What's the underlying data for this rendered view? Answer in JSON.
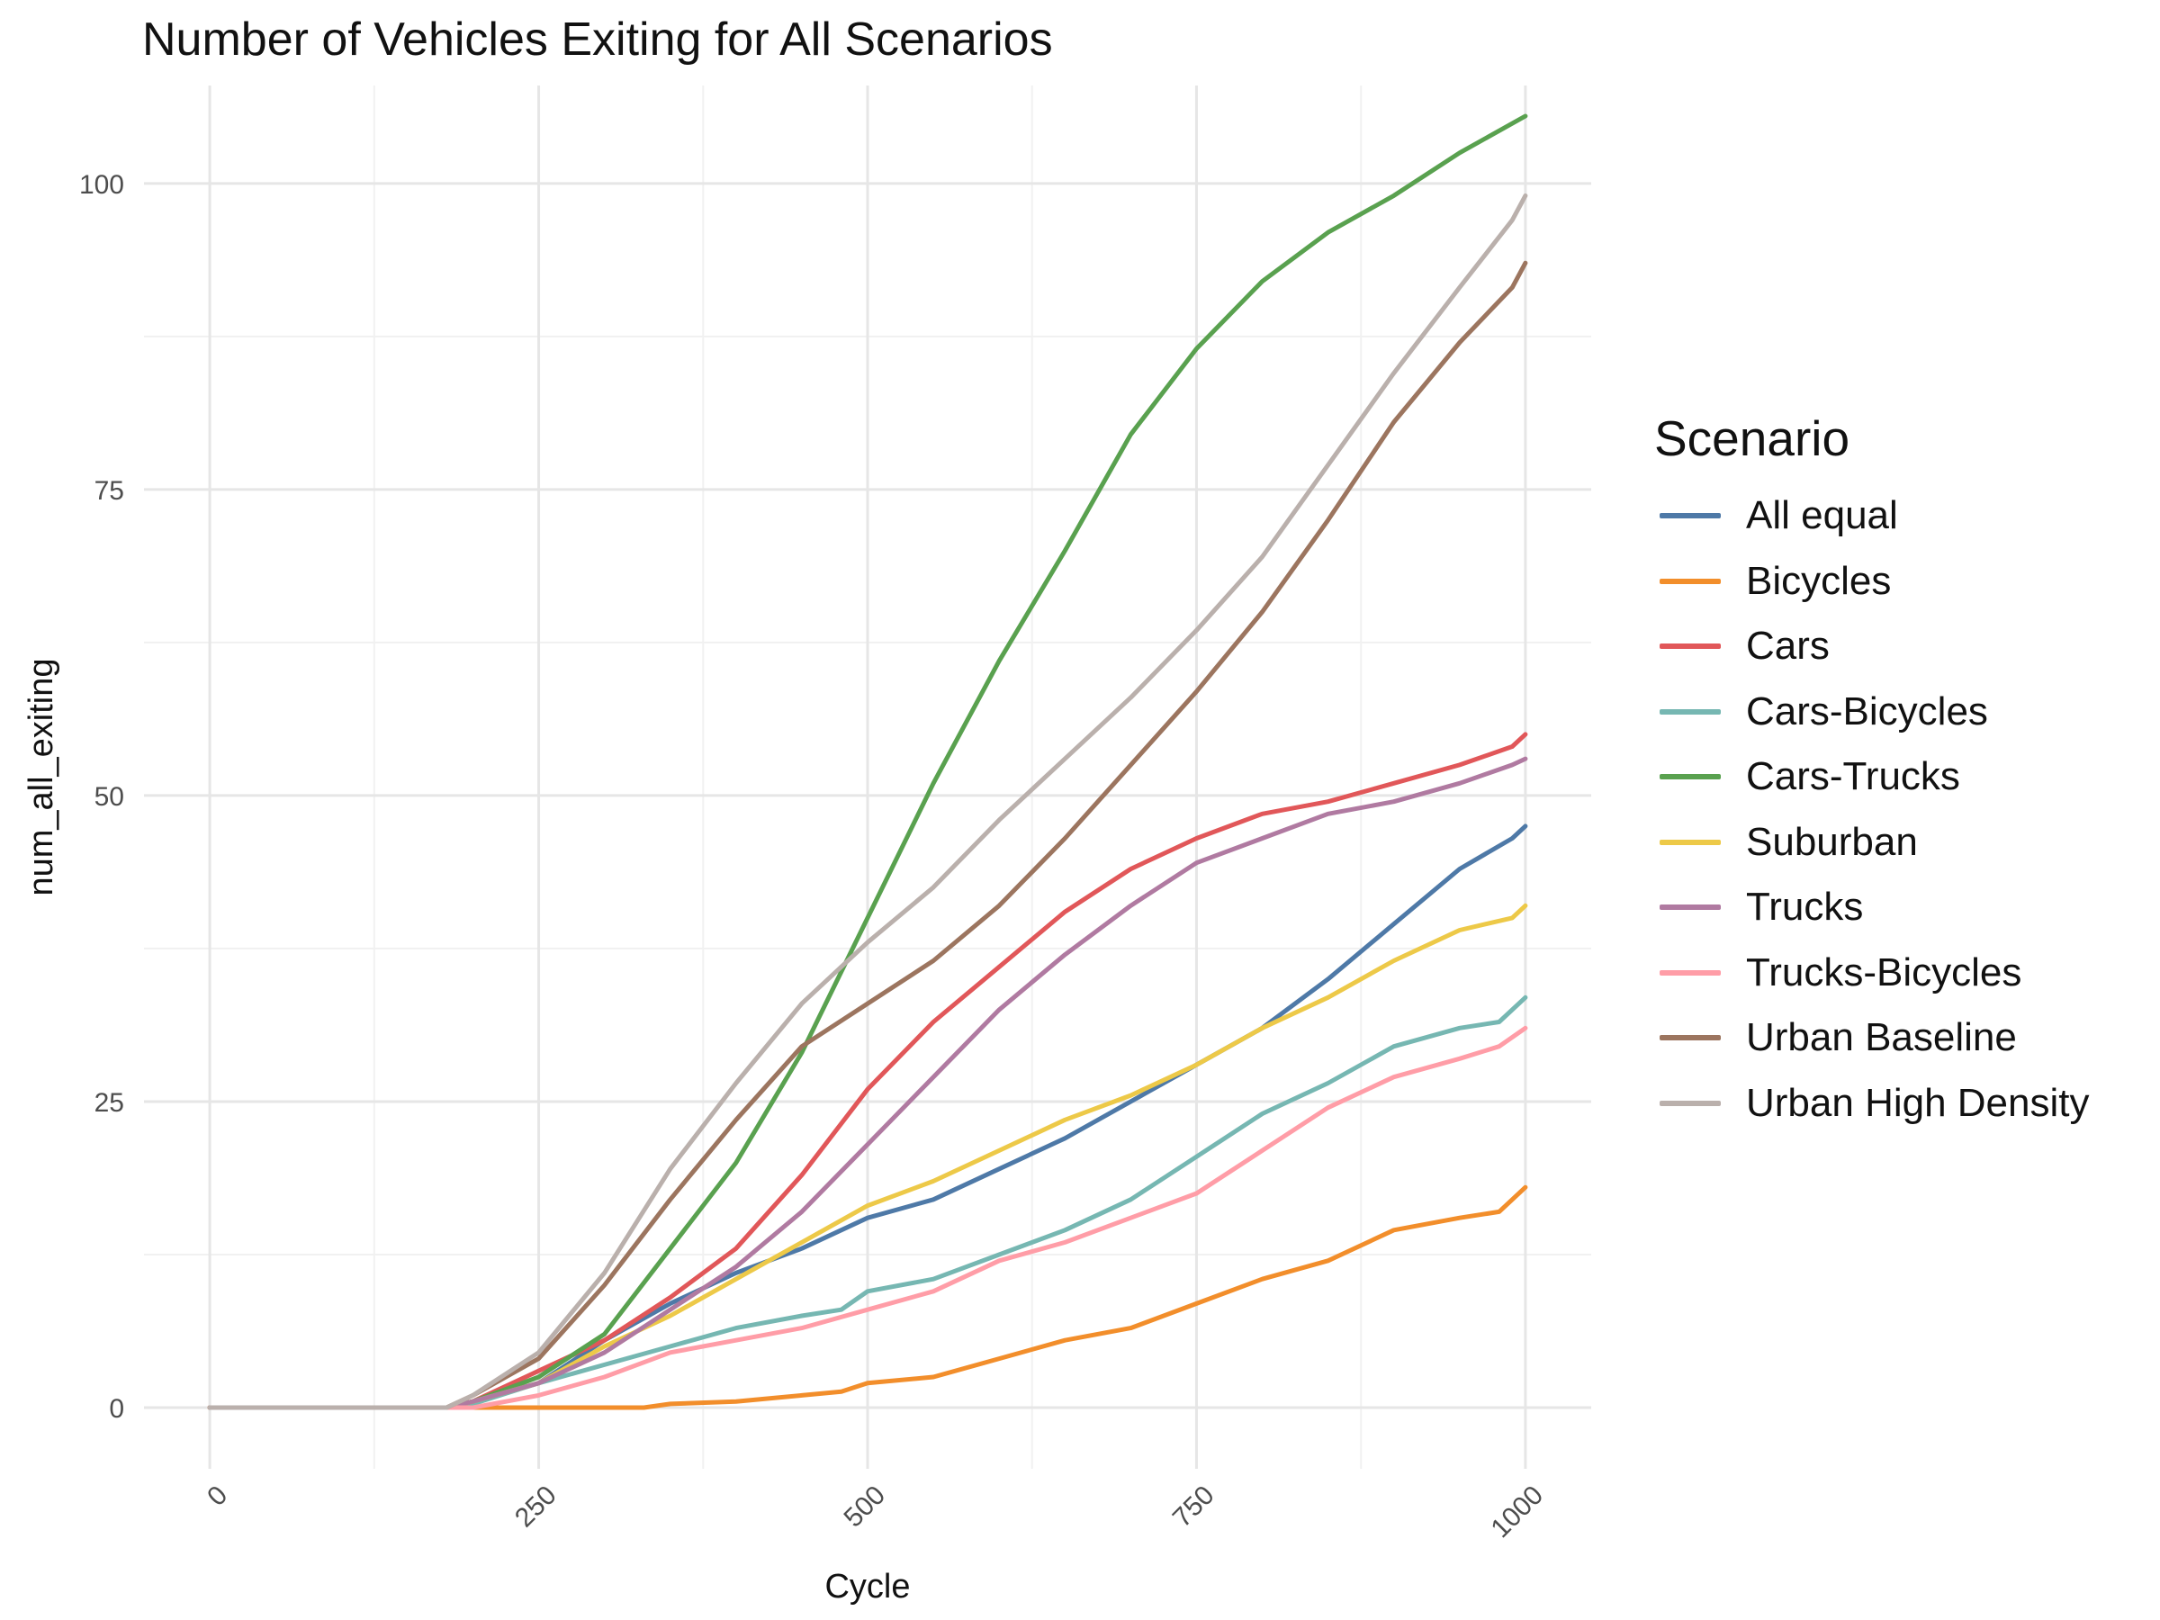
{
  "chart_data": {
    "type": "line",
    "title": "Number of Vehicles Exiting for All Scenarios",
    "xlabel": "Cycle",
    "ylabel": "num_all_exiting",
    "xlim": [
      -50,
      1050
    ],
    "ylim": [
      -5,
      108
    ],
    "x_ticks": [
      0,
      250,
      500,
      750,
      1000
    ],
    "x_tick_labels": [
      "0",
      "250",
      "500",
      "750",
      "1000"
    ],
    "y_ticks": [
      0,
      25,
      50,
      75,
      100
    ],
    "y_tick_labels": [
      "0",
      "25",
      "50",
      "75",
      "100"
    ],
    "grid": true,
    "legend": {
      "title": "Scenario",
      "placement": "right"
    },
    "series": [
      {
        "name": "All equal",
        "color": "#4e79a7",
        "x": [
          0,
          180,
          200,
          250,
          300,
          350,
          400,
          450,
          500,
          550,
          600,
          650,
          700,
          750,
          800,
          850,
          900,
          950,
          990,
          1000
        ],
        "y": [
          0,
          0,
          0.5,
          2,
          5.5,
          8.5,
          11,
          13,
          15.5,
          17,
          19.5,
          22,
          25,
          28,
          31,
          35,
          39.5,
          44,
          46.5,
          47.5
        ]
      },
      {
        "name": "Bicycles",
        "color": "#f28e2b",
        "x": [
          0,
          330,
          350,
          400,
          450,
          480,
          500,
          550,
          600,
          650,
          700,
          750,
          800,
          850,
          900,
          950,
          980,
          990,
          1000
        ],
        "y": [
          0,
          0,
          0.3,
          0.5,
          1,
          1.3,
          2,
          2.5,
          4,
          5.5,
          6.5,
          8.5,
          10.5,
          12,
          14.5,
          15.5,
          16,
          17,
          18
        ]
      },
      {
        "name": "Cars",
        "color": "#e15759",
        "x": [
          0,
          180,
          200,
          250,
          300,
          350,
          400,
          450,
          500,
          550,
          600,
          650,
          700,
          750,
          800,
          850,
          900,
          950,
          990,
          1000
        ],
        "y": [
          0,
          0,
          0.5,
          3,
          5.5,
          9,
          13,
          19,
          26,
          31.5,
          36,
          40.5,
          44,
          46.5,
          48.5,
          49.5,
          51,
          52.5,
          54,
          55
        ]
      },
      {
        "name": "Cars-Bicycles",
        "color": "#76b7b2",
        "x": [
          0,
          190,
          200,
          250,
          300,
          350,
          400,
          450,
          480,
          500,
          550,
          600,
          650,
          700,
          750,
          800,
          850,
          900,
          950,
          980,
          1000
        ],
        "y": [
          0,
          0,
          0.3,
          2,
          3.5,
          5,
          6.5,
          7.5,
          8,
          9.5,
          10.5,
          12.5,
          14.5,
          17,
          20.5,
          24,
          26.5,
          29.5,
          31,
          31.5,
          33.5
        ]
      },
      {
        "name": "Cars-Trucks",
        "color": "#59a14f",
        "x": [
          0,
          180,
          200,
          250,
          300,
          350,
          400,
          450,
          500,
          550,
          600,
          650,
          700,
          750,
          800,
          850,
          900,
          950,
          1000
        ],
        "y": [
          0,
          0,
          0.5,
          2.5,
          6,
          13,
          20,
          29,
          40,
          51,
          61,
          70,
          79.5,
          86.5,
          92,
          96,
          99,
          102.5,
          105.5
        ]
      },
      {
        "name": "Suburban",
        "color": "#edc948",
        "x": [
          0,
          180,
          200,
          250,
          300,
          350,
          400,
          450,
          500,
          550,
          600,
          650,
          700,
          750,
          800,
          850,
          900,
          950,
          990,
          1000
        ],
        "y": [
          0,
          0,
          0.5,
          2,
          5,
          7.5,
          10.5,
          13.5,
          16.5,
          18.5,
          21,
          23.5,
          25.5,
          28,
          31,
          33.5,
          36.5,
          39,
          40,
          41
        ]
      },
      {
        "name": "Trucks",
        "color": "#b07aa1",
        "x": [
          0,
          180,
          200,
          250,
          300,
          350,
          400,
          450,
          500,
          550,
          600,
          650,
          700,
          750,
          800,
          850,
          900,
          950,
          990,
          1000
        ],
        "y": [
          0,
          0,
          0.5,
          2,
          4.5,
          8,
          11.5,
          16,
          21.5,
          27,
          32.5,
          37,
          41,
          44.5,
          46.5,
          48.5,
          49.5,
          51,
          52.5,
          53
        ]
      },
      {
        "name": "Trucks-Bicycles",
        "color": "#ff9da7",
        "x": [
          0,
          200,
          250,
          300,
          350,
          400,
          450,
          500,
          550,
          600,
          650,
          700,
          750,
          800,
          850,
          900,
          950,
          980,
          1000
        ],
        "y": [
          0,
          0,
          1,
          2.5,
          4.5,
          5.5,
          6.5,
          8,
          9.5,
          12,
          13.5,
          15.5,
          17.5,
          21,
          24.5,
          27,
          28.5,
          29.5,
          31
        ]
      },
      {
        "name": "Urban Baseline",
        "color": "#9c755f",
        "x": [
          0,
          180,
          200,
          250,
          300,
          350,
          400,
          450,
          500,
          550,
          600,
          650,
          700,
          750,
          800,
          850,
          900,
          950,
          990,
          1000
        ],
        "y": [
          0,
          0,
          1,
          4,
          10,
          17,
          23.5,
          29.5,
          33,
          36.5,
          41,
          46.5,
          52.5,
          58.5,
          65,
          72.5,
          80.5,
          87,
          91.5,
          93.5
        ]
      },
      {
        "name": "Urban High Density",
        "color": "#bab0ac",
        "x": [
          0,
          180,
          200,
          250,
          300,
          350,
          400,
          450,
          500,
          550,
          600,
          650,
          700,
          750,
          800,
          850,
          900,
          950,
          990,
          1000
        ],
        "y": [
          0,
          0,
          1,
          4.5,
          11,
          19.5,
          26.5,
          33,
          38,
          42.5,
          48,
          53,
          58,
          63.5,
          69.5,
          77,
          84.5,
          91.5,
          97,
          99
        ]
      }
    ]
  }
}
